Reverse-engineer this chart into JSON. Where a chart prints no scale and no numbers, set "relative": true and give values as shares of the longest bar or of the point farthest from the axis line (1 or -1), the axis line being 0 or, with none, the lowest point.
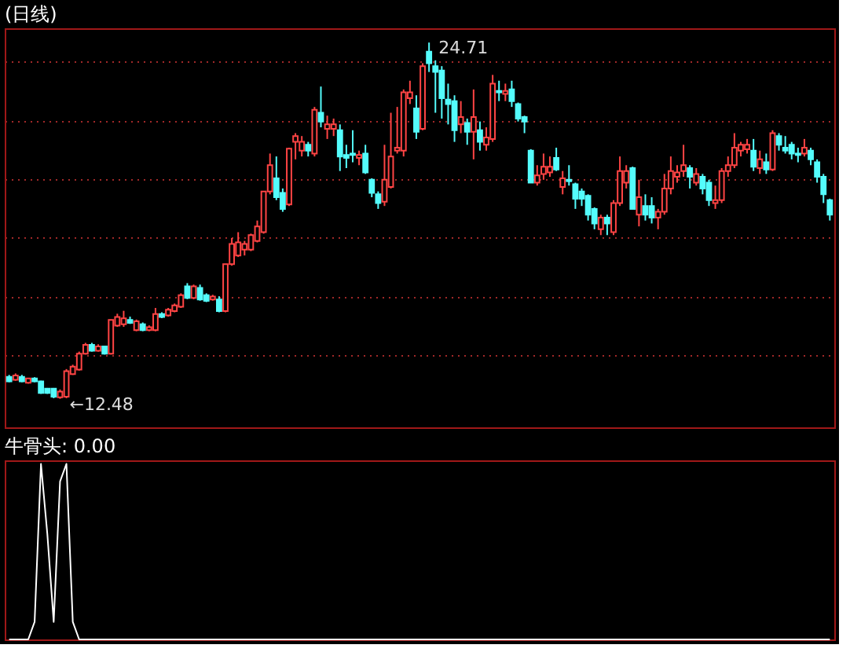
{
  "chart_data": [
    {
      "type": "candlestick",
      "title": "(日线)",
      "tick_labels": false,
      "grid": "y",
      "ylim": [
        11.5,
        25.2
      ],
      "yticks": [
        {
          "value": 13.99,
          "label": null
        },
        {
          "value": 16.0,
          "label": null
        },
        {
          "value": 18.01,
          "label": null
        },
        {
          "value": 20.03,
          "label": null
        },
        {
          "value": 22.04,
          "label": null
        },
        {
          "value": 24.05,
          "label": null
        }
      ],
      "categories": [
        null,
        null,
        null,
        null,
        null,
        null,
        null,
        null,
        null,
        null,
        null,
        null,
        null,
        null,
        null,
        null,
        null,
        null,
        null,
        null,
        null,
        null,
        null,
        null,
        null,
        null,
        null,
        null,
        null,
        null,
        null,
        null,
        null,
        null,
        null,
        null,
        null,
        null,
        null,
        null,
        null,
        null,
        null,
        null,
        null,
        null,
        null,
        null,
        null,
        null,
        null,
        null,
        null,
        null,
        null,
        null,
        null,
        null,
        null,
        null,
        null,
        null,
        null,
        null,
        null,
        null,
        null,
        null,
        null,
        null,
        null,
        null,
        null,
        null,
        null,
        null,
        null,
        null,
        null,
        null,
        null,
        null,
        null,
        null,
        null,
        null,
        null,
        null,
        null,
        null,
        null,
        null,
        null,
        null,
        null,
        null,
        null,
        null,
        null,
        null,
        null,
        null,
        null,
        null,
        null,
        null,
        null,
        null,
        null,
        null,
        null,
        null,
        null,
        null,
        null,
        null,
        null,
        null,
        null,
        null,
        null,
        null,
        null,
        null,
        null,
        null,
        null,
        null,
        null,
        null
      ],
      "ohlc": [
        [
          13.23,
          13.3,
          13.05,
          13.08
        ],
        [
          13.13,
          13.35,
          13.1,
          13.28
        ],
        [
          13.23,
          13.3,
          13.05,
          13.08
        ],
        [
          13.03,
          13.2,
          13.0,
          13.18
        ],
        [
          13.18,
          13.22,
          13.05,
          13.08
        ],
        [
          13.08,
          13.1,
          12.65,
          12.68
        ],
        [
          12.83,
          12.85,
          12.65,
          12.68
        ],
        [
          12.83,
          12.85,
          12.5,
          12.55
        ],
        [
          12.53,
          12.8,
          12.48,
          12.73
        ],
        [
          12.55,
          13.5,
          12.5,
          13.43
        ],
        [
          13.33,
          13.65,
          13.3,
          13.58
        ],
        [
          13.48,
          14.1,
          13.45,
          14.03
        ],
        [
          14.03,
          14.4,
          14.0,
          14.33
        ],
        [
          14.33,
          14.4,
          14.1,
          14.13
        ],
        [
          14.13,
          14.35,
          14.1,
          14.28
        ],
        [
          14.28,
          14.3,
          14.0,
          14.03
        ],
        [
          14.03,
          15.2,
          14.0,
          15.19
        ],
        [
          14.99,
          15.4,
          14.95,
          15.29
        ],
        [
          15.04,
          15.5,
          14.95,
          15.24
        ],
        [
          15.19,
          15.3,
          15.05,
          15.09
        ],
        [
          14.84,
          15.2,
          14.8,
          15.14
        ],
        [
          15.04,
          15.1,
          14.8,
          14.84
        ],
        [
          14.84,
          15.0,
          14.8,
          14.94
        ],
        [
          14.84,
          15.6,
          14.8,
          15.39
        ],
        [
          15.39,
          15.45,
          15.25,
          15.29
        ],
        [
          15.34,
          15.6,
          15.3,
          15.54
        ],
        [
          15.49,
          15.75,
          15.45,
          15.69
        ],
        [
          15.64,
          16.1,
          15.6,
          16.04
        ],
        [
          16.34,
          16.45,
          15.9,
          15.94
        ],
        [
          15.94,
          16.4,
          15.9,
          16.34
        ],
        [
          16.29,
          16.4,
          15.85,
          15.89
        ],
        [
          16.04,
          16.1,
          15.8,
          15.84
        ],
        [
          15.89,
          16.05,
          15.85,
          15.99
        ],
        [
          15.89,
          16.0,
          15.45,
          15.49
        ],
        [
          15.49,
          17.1,
          15.45,
          17.1
        ],
        [
          17.1,
          18.0,
          17.05,
          17.8
        ],
        [
          17.4,
          18.2,
          17.35,
          17.85
        ],
        [
          17.6,
          17.9,
          17.4,
          17.8
        ],
        [
          17.6,
          18.15,
          17.55,
          18.1
        ],
        [
          17.9,
          18.6,
          17.85,
          18.4
        ],
        [
          18.2,
          19.6,
          18.15,
          19.6
        ],
        [
          19.6,
          20.9,
          19.5,
          20.5
        ],
        [
          20.05,
          20.8,
          19.3,
          19.4
        ],
        [
          19.55,
          19.7,
          18.9,
          19.0
        ],
        [
          19.15,
          21.1,
          19.1,
          21.07
        ],
        [
          21.3,
          21.6,
          20.7,
          21.5
        ],
        [
          21.0,
          21.5,
          20.8,
          21.3
        ],
        [
          21.2,
          21.3,
          20.8,
          21.0
        ],
        [
          20.9,
          22.5,
          20.8,
          22.4
        ],
        [
          22.3,
          23.2,
          21.8,
          22.0
        ],
        [
          21.75,
          22.2,
          21.4,
          21.9
        ],
        [
          21.75,
          22.1,
          21.5,
          21.9
        ],
        [
          21.7,
          21.9,
          20.3,
          20.8
        ],
        [
          20.85,
          21.2,
          20.4,
          20.75
        ],
        [
          20.9,
          21.7,
          20.6,
          20.85
        ],
        [
          20.75,
          21.0,
          20.5,
          20.85
        ],
        [
          20.9,
          21.2,
          20.2,
          20.25
        ],
        [
          20.0,
          20.05,
          19.4,
          19.55
        ],
        [
          19.5,
          19.6,
          19.0,
          19.2
        ],
        [
          19.25,
          21.2,
          19.1,
          20.0
        ],
        [
          19.75,
          22.3,
          19.7,
          20.8
        ],
        [
          21.0,
          22.5,
          20.9,
          21.1
        ],
        [
          21.0,
          23.1,
          20.8,
          23.0
        ],
        [
          22.8,
          23.4,
          22.6,
          23.0
        ],
        [
          22.45,
          22.9,
          21.4,
          21.65
        ],
        [
          21.75,
          24.0,
          21.7,
          23.9
        ],
        [
          24.4,
          24.71,
          23.7,
          24.0
        ],
        [
          23.9,
          24.1,
          22.3,
          23.7
        ],
        [
          23.75,
          23.9,
          22.1,
          22.8
        ],
        [
          22.75,
          23.3,
          21.9,
          22.6
        ],
        [
          22.7,
          22.9,
          21.3,
          21.7
        ],
        [
          21.9,
          22.7,
          21.6,
          22.15
        ],
        [
          21.95,
          22.1,
          21.2,
          21.65
        ],
        [
          21.65,
          23.1,
          20.7,
          22.15
        ],
        [
          21.7,
          22.0,
          21.0,
          21.3
        ],
        [
          21.2,
          21.8,
          21.0,
          21.45
        ],
        [
          21.4,
          23.6,
          21.3,
          23.3
        ],
        [
          23.05,
          23.4,
          22.7,
          23.0
        ],
        [
          22.95,
          23.3,
          22.7,
          23.05
        ],
        [
          23.1,
          23.4,
          22.5,
          22.7
        ],
        [
          22.6,
          22.65,
          22.0,
          22.1
        ],
        [
          22.15,
          22.2,
          21.6,
          22.0
        ],
        [
          21.0,
          21.05,
          19.9,
          19.9
        ],
        [
          19.9,
          20.5,
          19.8,
          20.15
        ],
        [
          20.2,
          20.9,
          20.0,
          20.45
        ],
        [
          20.25,
          20.8,
          20.1,
          20.45
        ],
        [
          20.75,
          21.1,
          20.3,
          20.35
        ],
        [
          19.75,
          20.3,
          19.5,
          20.05
        ],
        [
          20.0,
          20.5,
          19.8,
          19.95
        ],
        [
          19.85,
          19.9,
          19.0,
          19.35
        ],
        [
          19.6,
          19.7,
          19.1,
          19.35
        ],
        [
          19.45,
          19.5,
          18.6,
          18.8
        ],
        [
          19.0,
          19.05,
          18.3,
          18.5
        ],
        [
          18.3,
          18.8,
          18.1,
          18.7
        ],
        [
          18.7,
          18.8,
          18.1,
          18.5
        ],
        [
          18.2,
          19.3,
          18.1,
          19.2
        ],
        [
          19.2,
          20.8,
          19.1,
          20.3
        ],
        [
          19.9,
          20.5,
          19.7,
          20.3
        ],
        [
          20.4,
          20.45,
          19.0,
          19.0
        ],
        [
          18.8,
          20.0,
          18.4,
          19.4
        ],
        [
          19.1,
          19.5,
          18.6,
          18.8
        ],
        [
          19.1,
          19.4,
          18.5,
          18.7
        ],
        [
          18.7,
          19.0,
          18.3,
          18.9
        ],
        [
          18.9,
          20.2,
          18.8,
          19.7
        ],
        [
          19.7,
          20.8,
          19.5,
          20.3
        ],
        [
          20.1,
          20.5,
          19.9,
          20.25
        ],
        [
          20.3,
          21.2,
          20.1,
          20.5
        ],
        [
          20.4,
          20.5,
          19.7,
          20.1
        ],
        [
          19.9,
          20.4,
          19.8,
          20.2
        ],
        [
          20.1,
          20.2,
          19.5,
          19.7
        ],
        [
          19.9,
          20.0,
          19.1,
          19.3
        ],
        [
          19.2,
          19.8,
          19.0,
          19.3
        ],
        [
          19.3,
          20.4,
          19.2,
          20.3
        ],
        [
          20.3,
          20.8,
          20.1,
          20.5
        ],
        [
          20.5,
          21.6,
          20.4,
          21.1
        ],
        [
          21.0,
          21.3,
          20.8,
          21.2
        ],
        [
          21.05,
          21.4,
          20.9,
          21.2
        ],
        [
          21.0,
          21.4,
          20.3,
          20.45
        ],
        [
          20.4,
          21.0,
          20.2,
          20.7
        ],
        [
          20.6,
          20.9,
          20.2,
          20.35
        ],
        [
          20.35,
          21.7,
          20.3,
          21.6
        ],
        [
          21.5,
          21.6,
          21.0,
          21.2
        ],
        [
          21.1,
          21.5,
          20.9,
          21.0
        ],
        [
          21.2,
          21.3,
          20.7,
          20.9
        ],
        [
          20.9,
          21.1,
          20.6,
          20.85
        ],
        [
          20.9,
          21.4,
          20.8,
          21.1
        ],
        [
          21.0,
          21.1,
          20.5,
          20.7
        ],
        [
          20.6,
          20.7,
          19.9,
          20.1
        ],
        [
          20.1,
          20.2,
          19.2,
          19.5
        ],
        [
          19.3,
          19.35,
          18.6,
          18.8
        ]
      ],
      "annotations": [
        "24.71",
        "←12.48"
      ]
    },
    {
      "type": "line",
      "title": "牛骨头: 0.00",
      "relative": true,
      "tick_labels": false,
      "color": "#ffffff",
      "categories": [
        null,
        null,
        null,
        null,
        null,
        null,
        null,
        null,
        null,
        null,
        null,
        null,
        null,
        null,
        null,
        null,
        null,
        null,
        null,
        null,
        null,
        null,
        null,
        null,
        null,
        null,
        null,
        null,
        null,
        null,
        null,
        null,
        null,
        null,
        null,
        null,
        null,
        null,
        null,
        null,
        null,
        null,
        null,
        null,
        null,
        null,
        null,
        null,
        null,
        null,
        null,
        null,
        null,
        null,
        null,
        null,
        null,
        null,
        null,
        null,
        null,
        null,
        null,
        null,
        null,
        null,
        null,
        null,
        null,
        null,
        null,
        null,
        null,
        null,
        null,
        null,
        null,
        null,
        null,
        null,
        null,
        null,
        null,
        null,
        null,
        null,
        null,
        null,
        null,
        null,
        null,
        null,
        null,
        null,
        null,
        null,
        null,
        null,
        null,
        null,
        null,
        null,
        null,
        null,
        null,
        null,
        null,
        null,
        null,
        null,
        null,
        null,
        null,
        null,
        null,
        null,
        null,
        null,
        null,
        null,
        null,
        null,
        null,
        null,
        null,
        null,
        null,
        null,
        null,
        null
      ],
      "values": [
        0,
        0,
        0,
        0,
        0.1,
        1,
        0.6,
        0.1,
        0.9,
        1,
        0.1,
        0,
        0,
        0,
        0,
        0,
        0,
        0,
        0,
        0,
        0,
        0,
        0,
        0,
        0,
        0,
        0,
        0,
        0,
        0,
        0,
        0,
        0,
        0,
        0,
        0,
        0,
        0,
        0,
        0,
        0,
        0,
        0,
        0,
        0,
        0,
        0,
        0,
        0,
        0,
        0,
        0,
        0,
        0,
        0,
        0,
        0,
        0,
        0,
        0,
        0,
        0,
        0,
        0,
        0,
        0,
        0,
        0,
        0,
        0,
        0,
        0,
        0,
        0,
        0,
        0,
        0,
        0,
        0,
        0,
        0,
        0,
        0,
        0,
        0,
        0,
        0,
        0,
        0,
        0,
        0,
        0,
        0,
        0,
        0,
        0,
        0,
        0,
        0,
        0,
        0,
        0,
        0,
        0,
        0,
        0,
        0,
        0,
        0,
        0,
        0,
        0,
        0,
        0,
        0,
        0,
        0,
        0,
        0,
        0,
        0,
        0,
        0,
        0,
        0,
        0,
        0,
        0,
        0,
        0
      ]
    }
  ]
}
